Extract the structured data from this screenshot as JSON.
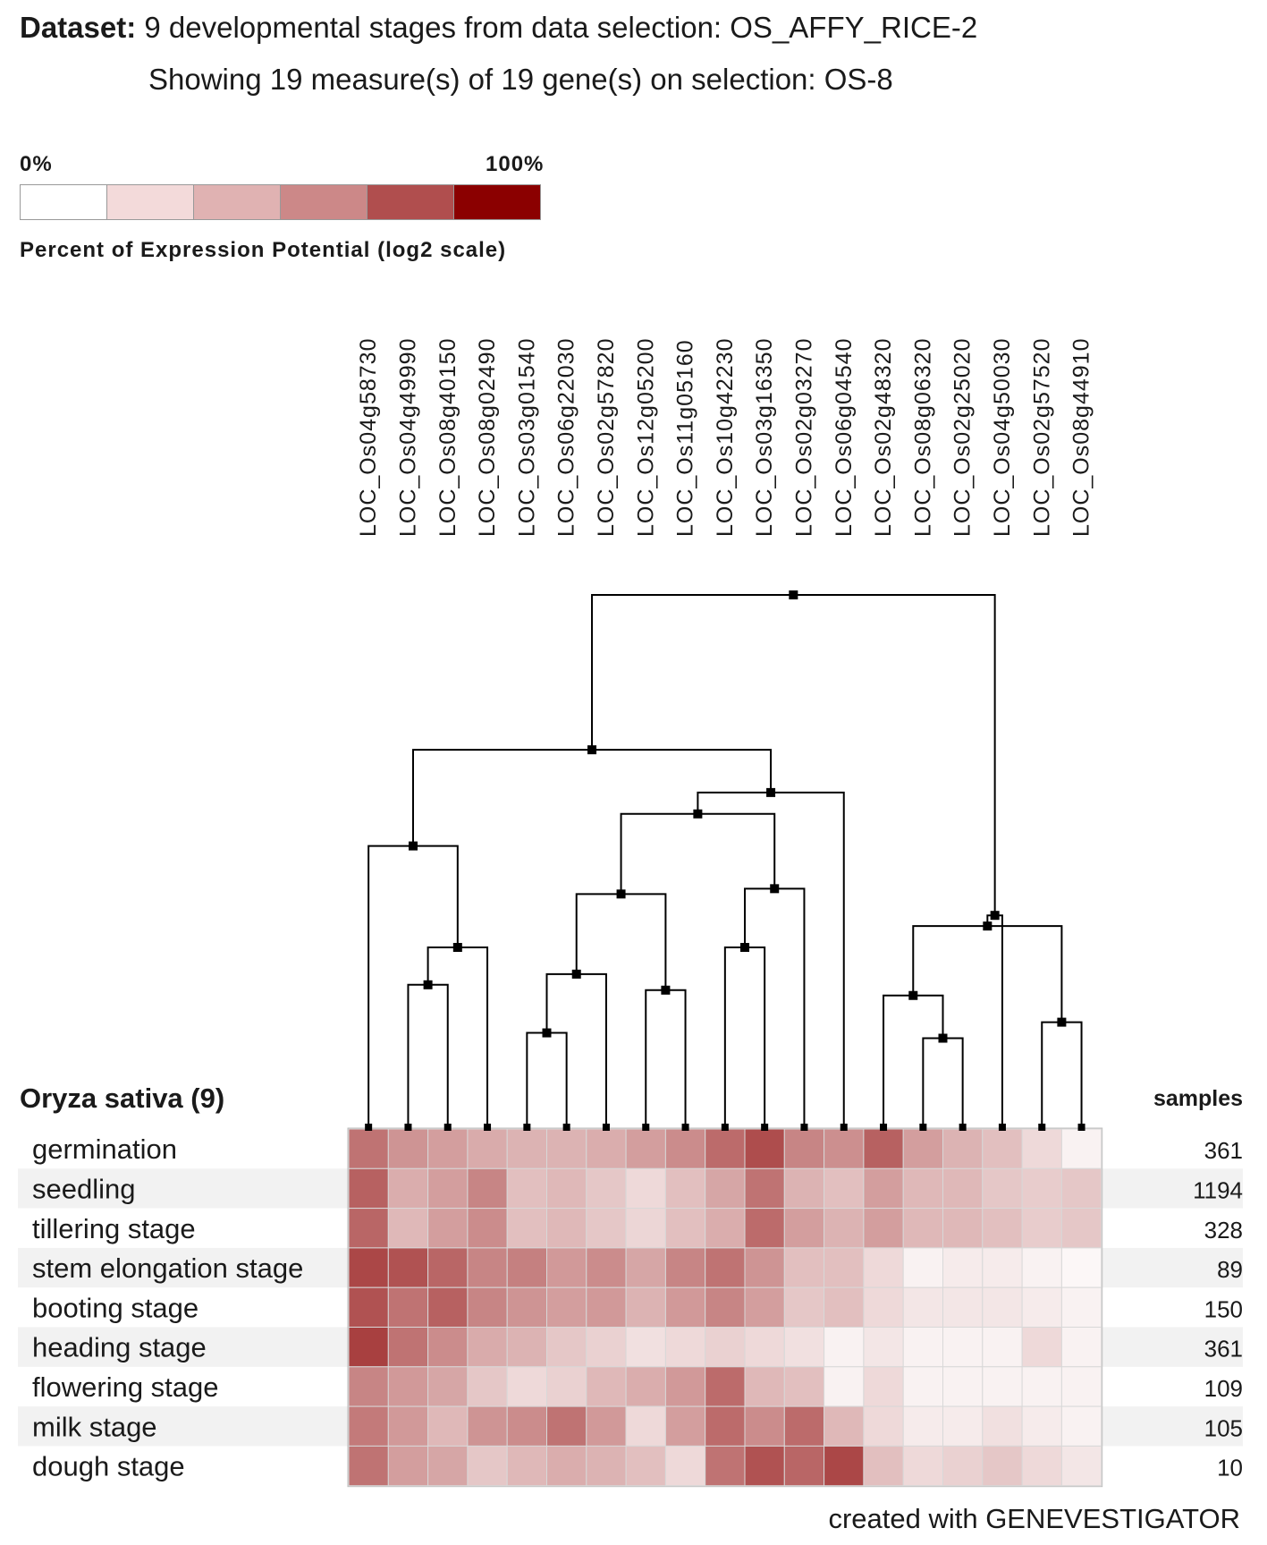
{
  "header": {
    "dataset_label": "Dataset:",
    "dataset_text": "9 developmental stages from data selection: OS_AFFY_RICE-2",
    "showing_text": "Showing 19 measure(s) of 19 gene(s) on selection: OS-8"
  },
  "legend": {
    "min_label": "0%",
    "max_label": "100%",
    "title": "Percent of Expression Potential (log2 scale)",
    "colors": [
      "#ffffff",
      "#f3dada",
      "#e0b2b2",
      "#cc8888",
      "#b04e4e",
      "#8b0000"
    ]
  },
  "footer": {
    "credit": "created with GENEVESTIGATOR"
  },
  "chart_data": {
    "type": "heatmap",
    "title": "Oryza sativa (9)",
    "row_header": "Oryza sativa (9)",
    "samples_header": "samples",
    "color_scale": {
      "min": 0,
      "max": 100,
      "unit": "percent",
      "scale": "log2"
    },
    "columns": [
      "LOC_Os04g58730",
      "LOC_Os04g49990",
      "LOC_Os08g40150",
      "LOC_Os08g02490",
      "LOC_Os03g01540",
      "LOC_Os06g22030",
      "LOC_Os02g57820",
      "LOC_Os12g05200",
      "LOC_Os11g05160",
      "LOC_Os10g42230",
      "LOC_Os03g16350",
      "LOC_Os02g03270",
      "LOC_Os06g04540",
      "LOC_Os02g48320",
      "LOC_Os08g06320",
      "LOC_Os02g25020",
      "LOC_Os04g50030",
      "LOC_Os02g57520",
      "LOC_Os08g44910"
    ],
    "rows": [
      {
        "label": "germination",
        "samples": "361",
        "values": [
          55,
          42,
          38,
          33,
          30,
          30,
          32,
          38,
          45,
          58,
          70,
          48,
          44,
          62,
          38,
          30,
          25,
          15,
          5
        ]
      },
      {
        "label": "seedling",
        "samples": "1194",
        "values": [
          62,
          32,
          38,
          48,
          25,
          28,
          22,
          15,
          25,
          35,
          55,
          30,
          25,
          38,
          28,
          28,
          22,
          20,
          22
        ]
      },
      {
        "label": "tillering stage",
        "samples": "328",
        "values": [
          60,
          28,
          38,
          45,
          25,
          28,
          22,
          16,
          25,
          32,
          58,
          38,
          30,
          38,
          28,
          28,
          25,
          20,
          22
        ]
      },
      {
        "label": "stem elongation stage",
        "samples": "89",
        "values": [
          72,
          68,
          60,
          48,
          50,
          40,
          45,
          35,
          48,
          55,
          42,
          25,
          25,
          15,
          5,
          8,
          8,
          5,
          3
        ]
      },
      {
        "label": "booting stage",
        "samples": "150",
        "values": [
          68,
          55,
          62,
          48,
          42,
          38,
          40,
          30,
          40,
          48,
          38,
          22,
          25,
          15,
          10,
          10,
          10,
          8,
          5
        ]
      },
      {
        "label": "heading stage",
        "samples": "361",
        "values": [
          75,
          55,
          45,
          33,
          30,
          22,
          18,
          12,
          15,
          18,
          15,
          12,
          5,
          10,
          5,
          5,
          5,
          15,
          5
        ]
      },
      {
        "label": "flowering stage",
        "samples": "109",
        "values": [
          48,
          40,
          35,
          22,
          15,
          18,
          28,
          32,
          40,
          58,
          28,
          25,
          5,
          15,
          5,
          5,
          5,
          5,
          5
        ]
      },
      {
        "label": "milk stage",
        "samples": "105",
        "values": [
          52,
          40,
          28,
          42,
          45,
          55,
          40,
          15,
          38,
          58,
          45,
          58,
          28,
          15,
          8,
          8,
          12,
          8,
          5
        ]
      },
      {
        "label": "dough stage",
        "samples": "10",
        "values": [
          55,
          38,
          35,
          22,
          28,
          32,
          30,
          25,
          15,
          55,
          68,
          60,
          72,
          25,
          15,
          18,
          22,
          15,
          10
        ]
      }
    ],
    "dendrogram": {
      "leaf_order": [
        0,
        1,
        2,
        3,
        4,
        5,
        6,
        7,
        8,
        9,
        10,
        11,
        12,
        13,
        14,
        15,
        16,
        17,
        18
      ],
      "merges": [
        {
          "left": 1,
          "right": 2,
          "height": 0.27
        },
        {
          "left": "n0",
          "right": 3,
          "height": 0.34
        },
        {
          "left": 0,
          "right": "n1",
          "height": 0.53
        },
        {
          "left": 4,
          "right": 5,
          "height": 0.18
        },
        {
          "left": "n3",
          "right": 6,
          "height": 0.29
        },
        {
          "left": 7,
          "right": 8,
          "height": 0.26
        },
        {
          "left": "n4",
          "right": "n5",
          "height": 0.44
        },
        {
          "left": 9,
          "right": 10,
          "height": 0.34
        },
        {
          "left": "n7",
          "right": 11,
          "height": 0.45
        },
        {
          "left": "n6",
          "right": "n8",
          "height": 0.59
        },
        {
          "left": "n9",
          "right": 12,
          "height": 0.63
        },
        {
          "left": "n2",
          "right": "n10",
          "height": 0.71
        },
        {
          "left": 14,
          "right": 15,
          "height": 0.17
        },
        {
          "left": 13,
          "right": "n12",
          "height": 0.25
        },
        {
          "left": 17,
          "right": 18,
          "height": 0.2
        },
        {
          "left": "n13",
          "right": "n14",
          "height": 0.38
        },
        {
          "left": 16,
          "right": "n15",
          "height": 0.4
        },
        {
          "left": "n11",
          "right": "n16",
          "height": 1.0
        }
      ]
    }
  }
}
